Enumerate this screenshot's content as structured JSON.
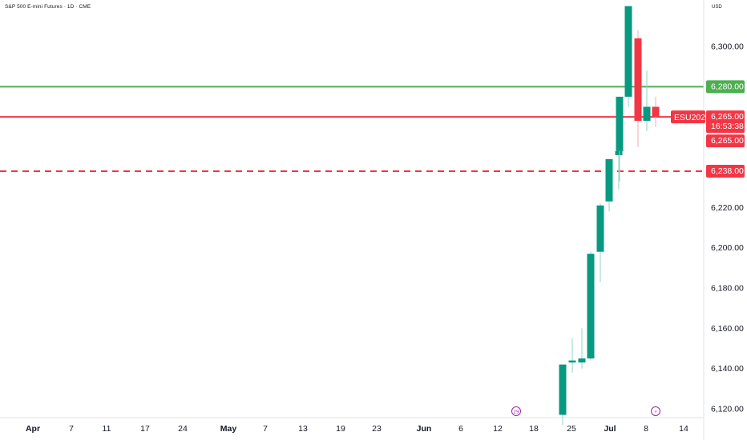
{
  "header": {
    "title": "S&P 500 E-mini Futures · 1D · CME",
    "currency": "USD"
  },
  "colors": {
    "up": "#089981",
    "down": "#f23645",
    "resistance_line": "#4caf50",
    "axis_text": "#131722"
  },
  "chart_data": {
    "type": "candlestick",
    "symbol": "ESU2025",
    "interval": "1D",
    "x_axis_labels": [
      "Apr",
      "7",
      "11",
      "17",
      "24",
      "May",
      "7",
      "13",
      "19",
      "23",
      "Jun",
      "6",
      "12",
      "18",
      "25",
      "Jul",
      "8",
      "14"
    ],
    "y_ticks": [
      6120,
      6140,
      6160,
      6180,
      6200,
      6220,
      6300
    ],
    "y_tick_labels": [
      "6,120.00",
      "6,140.00",
      "6,160.00",
      "6,180.00",
      "6,200.00",
      "6,220.00",
      "6,300.00"
    ],
    "ylim": [
      6115,
      6320
    ],
    "grid": false,
    "candles": [
      {
        "date": "Jun 23",
        "open": 6117.0,
        "high": 6142.0,
        "low": 6112.0,
        "close": 6142.0
      },
      {
        "date": "Jun 24",
        "open": 6143.0,
        "high": 6155.0,
        "low": 6138.0,
        "close": 6144.0
      },
      {
        "date": "Jun 25",
        "open": 6143.0,
        "high": 6160.0,
        "low": 6140.0,
        "close": 6145.0
      },
      {
        "date": "Jun 26",
        "open": 6145.0,
        "high": 6198.0,
        "low": 6144.0,
        "close": 6197.0
      },
      {
        "date": "Jun 27",
        "open": 6198.0,
        "high": 6222.0,
        "low": 6183.0,
        "close": 6221.0
      },
      {
        "date": "Jun 30",
        "open": 6223.0,
        "high": 6244.0,
        "low": 6218.0,
        "close": 6244.0
      },
      {
        "date": "Jul 1",
        "open": 6246.0,
        "high": 6260.0,
        "low": 6229.0,
        "close": 6248.0
      },
      {
        "date": "Jul 2",
        "open": 6248.0,
        "high": 6275.0,
        "low": 6233.0,
        "close": 6275.0
      },
      {
        "date": "Jul 3",
        "open": 6275.0,
        "high": 6320.0,
        "low": 6270.0,
        "close": 6320.0
      },
      {
        "date": "Jul 7",
        "open": 6304.0,
        "high": 6308.0,
        "low": 6250.0,
        "close": 6263.0
      },
      {
        "date": "Jul 8",
        "open": 6263.0,
        "high": 6288.0,
        "low": 6258.0,
        "close": 6270.0
      },
      {
        "date": "Jul 9",
        "open": 6270.0,
        "high": 6275.0,
        "low": 6260.0,
        "close": 6265.0
      }
    ],
    "levels": [
      {
        "price": 6280.0,
        "label": "6,280.00",
        "style": "solid",
        "color": "#4caf50"
      },
      {
        "price": 6265.0,
        "label": "6,265.00",
        "style": "solid",
        "color": "#f23645"
      },
      {
        "price": 6238.0,
        "label": "6,238.00",
        "style": "dashed",
        "color": "#f23645"
      }
    ],
    "last_price": {
      "symbol": "ESU2025",
      "price": "6,265.00",
      "countdown": "16:53:38",
      "extra": "6,265.00"
    },
    "events": [
      {
        "date": "Jun 15",
        "glyph": "29"
      },
      {
        "date": "Jul 9",
        "glyph": "⚡"
      }
    ]
  }
}
